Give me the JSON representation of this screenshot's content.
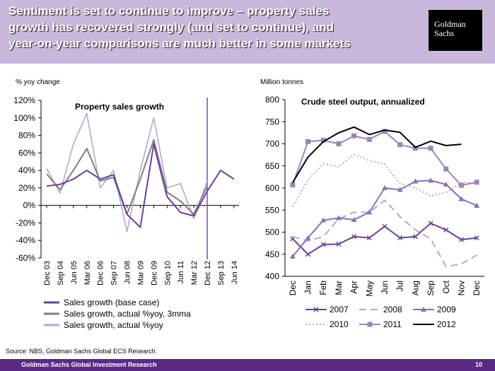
{
  "header": {
    "title_lines": [
      "Sentiment is set to continue to improve – property sales",
      "growth has recovered strongly (and set to continue), and",
      "year-on-year comparisons are much better in some markets"
    ],
    "logo_lines": [
      "Goldman",
      "Sachs"
    ]
  },
  "colors": {
    "header_bg": "#c9b8dc",
    "footer_bg": "#5b2a86",
    "purple_dark": "#6a3fa0",
    "purple_mid": "#9a85bd",
    "purple_light": "#b7a6d3",
    "gray": "#7f7f7f"
  },
  "source": "Source: NBS, Goldman Sachs Global ECS Research.",
  "footer": {
    "text": "Goldman Sachs Global Investment Research",
    "page": "10"
  },
  "chart_data": [
    {
      "type": "line",
      "title": "Property sales growth",
      "ylabel": "% yoy change",
      "ylim": [
        -60,
        120
      ],
      "y_ticks": [
        "120%",
        "100%",
        "80%",
        "60%",
        "40%",
        "20%",
        "0%",
        "-20%",
        "-40%",
        "-60%"
      ],
      "x_ticks": [
        "Dec 03",
        "Sep 04",
        "Jun 05",
        "Mar 06",
        "Dec 06",
        "Sep 07",
        "Jun 08",
        "Mar 09",
        "Dec 09",
        "Sep 10",
        "Jun 11",
        "Mar 12",
        "Dec 12",
        "Sep 13",
        "Jun 14"
      ],
      "legend_position": "bottom",
      "vertical_marker": "Dec 12",
      "series": [
        {
          "name": "Sales growth (base case)",
          "color": "#6a3fa0",
          "points": [
            [
              "Dec 03",
              22
            ],
            [
              "Sep 04",
              24
            ],
            [
              "Jun 05",
              30
            ],
            [
              "Mar 06",
              40
            ],
            [
              "Dec 06",
              30
            ],
            [
              "Sep 07",
              35
            ],
            [
              "Jun 08",
              -10
            ],
            [
              "Mar 09",
              -25
            ],
            [
              "Dec 09",
              70
            ],
            [
              "Sep 10",
              10
            ],
            [
              "Jun 11",
              -8
            ],
            [
              "Mar 12",
              -12
            ],
            [
              "Dec 12",
              16
            ],
            [
              "Sep 13",
              40
            ],
            [
              "Jun 14",
              30
            ]
          ]
        },
        {
          "name": "Sales growth, actual %yoy, 3mma",
          "color": "#7f7f7f",
          "points": [
            [
              "Dec 03",
              36
            ],
            [
              "Sep 04",
              18
            ],
            [
              "Jun 05",
              40
            ],
            [
              "Mar 06",
              65
            ],
            [
              "Dec 06",
              28
            ],
            [
              "Sep 07",
              32
            ],
            [
              "Jun 08",
              -10
            ],
            [
              "Mar 09",
              30
            ],
            [
              "Dec 09",
              75
            ],
            [
              "Sep 10",
              15
            ],
            [
              "Jun 11",
              5
            ],
            [
              "Mar 12",
              -10
            ],
            [
              "Dec 12",
              22
            ]
          ]
        },
        {
          "name": "Sales growth, actual %yoy",
          "color": "#b7a6d3",
          "points": [
            [
              "Dec 03",
              42
            ],
            [
              "Sep 04",
              14
            ],
            [
              "Jun 05",
              70
            ],
            [
              "Mar 06",
              105
            ],
            [
              "Dec 06",
              20
            ],
            [
              "Sep 07",
              40
            ],
            [
              "Jun 08",
              -30
            ],
            [
              "Mar 09",
              40
            ],
            [
              "Dec 09",
              100
            ],
            [
              "Sep 10",
              20
            ],
            [
              "Jun 11",
              25
            ],
            [
              "Mar 12",
              -15
            ],
            [
              "Dec 12",
              28
            ]
          ]
        }
      ]
    },
    {
      "type": "line",
      "title": "Crude steel output, annualized",
      "ylabel": "Million tonnes",
      "ylim": [
        400,
        800
      ],
      "y_ticks": [
        800,
        750,
        700,
        650,
        600,
        550,
        500,
        450,
        400
      ],
      "categories": [
        "Dec",
        "Jan",
        "Feb",
        "Mar",
        "Apr",
        "May",
        "Jun",
        "Jul",
        "Aug",
        "Sep",
        "Oct",
        "Nov",
        "Dec"
      ],
      "legend_position": "bottom",
      "series": [
        {
          "name": "2007",
          "color": "#6a3fa0",
          "style": "solid-x",
          "values": [
            485,
            450,
            472,
            473,
            490,
            487,
            513,
            487,
            490,
            520,
            505,
            483,
            487
          ]
        },
        {
          "name": "2008",
          "color": "#b7a6d3",
          "style": "dashed",
          "values": [
            490,
            480,
            490,
            530,
            545,
            545,
            572,
            535,
            505,
            485,
            422,
            428,
            448
          ]
        },
        {
          "name": "2009",
          "color": "#8a70b5",
          "style": "solid-triangle",
          "values": [
            445,
            487,
            527,
            532,
            528,
            545,
            600,
            596,
            615,
            617,
            608,
            575,
            560
          ]
        },
        {
          "name": "2010",
          "color": "#b7a6d3",
          "style": "dotted",
          "values": [
            558,
            618,
            655,
            648,
            676,
            662,
            654,
            610,
            600,
            582,
            590,
            612,
            612
          ]
        },
        {
          "name": "2011",
          "color": "#9a85bd",
          "style": "solid-square",
          "values": [
            607,
            705,
            708,
            700,
            718,
            710,
            728,
            698,
            690,
            690,
            643,
            606,
            613
          ]
        },
        {
          "name": "2012",
          "color": "#000000",
          "style": "solid",
          "values": [
            612,
            670,
            705,
            725,
            738,
            721,
            731,
            726,
            692,
            706,
            696,
            699,
            null
          ]
        }
      ]
    }
  ]
}
